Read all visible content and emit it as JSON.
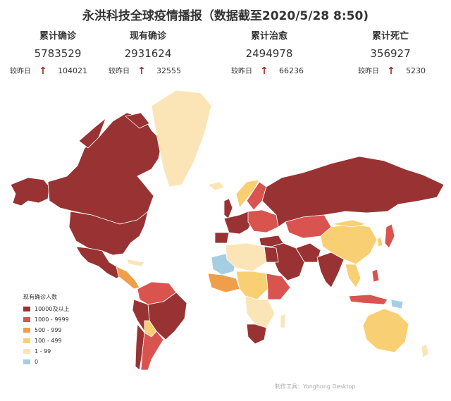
{
  "title": "永洪科技全球疫情播报（数据截至2020/5/28 8:50)",
  "stats": [
    {
      "label": "累计确诊",
      "value": "5783529",
      "delta_label": "较昨日",
      "delta": "104021"
    },
    {
      "label": "现有确诊",
      "value": "2931624",
      "delta_label": "较昨日",
      "delta": "32555"
    },
    {
      "label": "累计治愈",
      "value": "2494978",
      "delta_label": "较昨日",
      "delta": "66236"
    },
    {
      "label": "累计死亡",
      "value": "356927",
      "delta_label": "较昨日",
      "delta": "5230"
    }
  ],
  "legend": {
    "title": "现有确诊人数",
    "items": [
      {
        "label": "10000及以上",
        "color": "#993333"
      },
      {
        "label": "1000 - 9999",
        "color": "#d9534f"
      },
      {
        "label": "500 - 999",
        "color": "#ef9f4a"
      },
      {
        "label": "100 - 499",
        "color": "#f9cf73"
      },
      {
        "label": "1 - 99",
        "color": "#fbe4b6"
      },
      {
        "label": "0",
        "color": "#a6cee3"
      }
    ]
  },
  "credit": "制作工具：Yonghong Desktop",
  "colors": {
    "ocean": "#ffffff",
    "arrow": "#a52a2a",
    "border": "#ffffff"
  }
}
